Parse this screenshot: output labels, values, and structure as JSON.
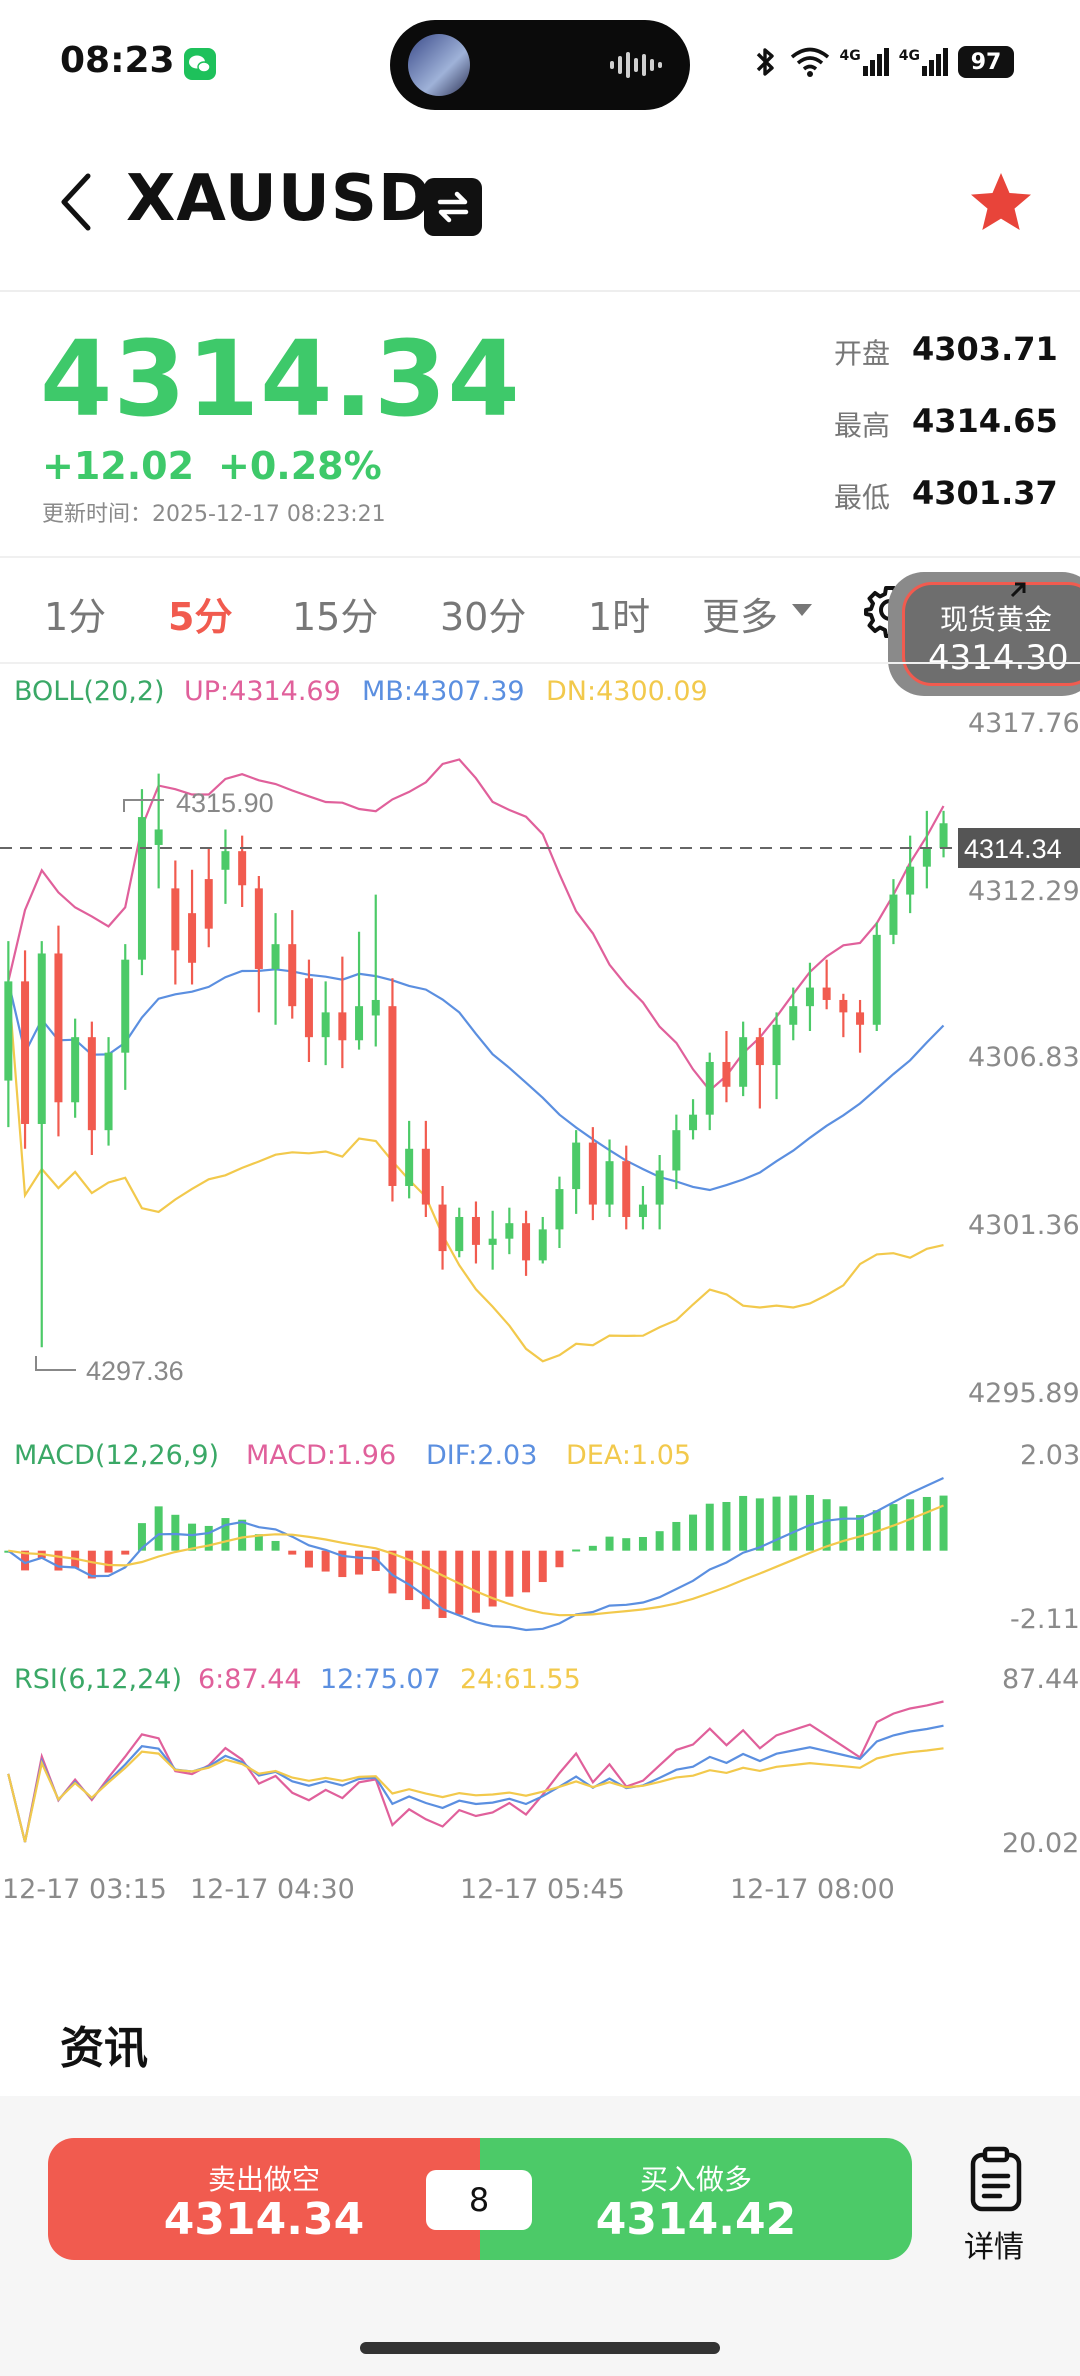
{
  "status_bar": {
    "time": "08:23",
    "network_1": "4G",
    "network_2": "4G",
    "battery": "97"
  },
  "header": {
    "symbol": "XAUUSD"
  },
  "quote": {
    "last": "4314.34",
    "change": "+12.02",
    "change_pct": "+0.28%",
    "update_time": "更新时间：2025-12-17 08:23:21",
    "open_label": "开盘",
    "open": "4303.71",
    "high_label": "最高",
    "high": "4314.65",
    "low_label": "最低",
    "low": "4301.37"
  },
  "tabs": {
    "items": [
      "1分",
      "5分",
      "15分",
      "30分",
      "1时",
      "更多"
    ],
    "selected": "5分"
  },
  "float_badge": {
    "name": "现货黄金",
    "price": "4314.30"
  },
  "boll": {
    "name": "BOLL(20,2)",
    "up": "UP:4314.69",
    "mb": "MB:4307.39",
    "dn": "DN:4300.09"
  },
  "price_axis": [
    "4317.76",
    "4312.29",
    "4306.83",
    "4301.36",
    "4295.89"
  ],
  "current_price_tag": "4314.34",
  "max_label": "4315.90",
  "min_label": "4297.36",
  "macd": {
    "name": "MACD(12,26,9)",
    "macd": "MACD:1.96",
    "dif": "DIF:2.03",
    "dea": "DEA:1.05",
    "axis_top": "2.03",
    "axis_bottom": "-2.11"
  },
  "rsi": {
    "name": "RSI(6,12,24)",
    "r6": "6:87.44",
    "r12": "12:75.07",
    "r24": "24:61.55",
    "axis_top": "87.44",
    "axis_bottom": "20.02"
  },
  "time_axis": [
    "12-17 03:15",
    "12-17 04:30",
    "12-17 05:45",
    "12-17 08:00"
  ],
  "news": {
    "title": "资讯"
  },
  "trade": {
    "sell_label": "卖出做空",
    "sell_price": "4314.34",
    "buy_label": "买入做多",
    "buy_price": "4314.42",
    "spread": "8",
    "detail_label": "详情"
  },
  "colors": {
    "up": "#4cca68",
    "down": "#f15b4f",
    "boll_up": "#e0609b",
    "boll_mb": "#5b8fe0",
    "boll_dn": "#f2c94c"
  },
  "chart_data": {
    "type": "candlestick",
    "symbol": "XAUUSD",
    "interval": "5分",
    "ylim": [
      4295.89,
      4317.76
    ],
    "x_ticks": [
      "12-17 03:15",
      "12-17 04:30",
      "12-17 05:45",
      "12-17 08:00"
    ],
    "candles": [
      [
        4306.0,
        4309.2,
        4310.5,
        4304.5
      ],
      [
        4309.2,
        4304.6,
        4310.2,
        4303.8
      ],
      [
        4304.6,
        4310.1,
        4310.5,
        4297.4
      ],
      [
        4310.1,
        4305.3,
        4311.0,
        4304.2
      ],
      [
        4305.3,
        4307.4,
        4308.0,
        4304.8
      ],
      [
        4307.4,
        4304.4,
        4307.9,
        4303.6
      ],
      [
        4304.4,
        4306.9,
        4307.4,
        4303.9
      ],
      [
        4306.9,
        4309.9,
        4310.4,
        4305.7
      ],
      [
        4309.9,
        4314.5,
        4315.4,
        4309.4
      ],
      [
        4313.6,
        4314.1,
        4315.9,
        4312.2
      ],
      [
        4312.2,
        4310.2,
        4313.1,
        4309.1
      ],
      [
        4311.4,
        4309.8,
        4312.8,
        4309.1
      ],
      [
        4312.5,
        4310.9,
        4313.5,
        4310.3
      ],
      [
        4312.8,
        4313.4,
        4314.1,
        4311.7
      ],
      [
        4313.4,
        4312.3,
        4313.9,
        4311.6
      ],
      [
        4312.2,
        4309.6,
        4312.6,
        4308.2
      ],
      [
        4309.6,
        4310.4,
        4311.4,
        4307.8
      ],
      [
        4310.4,
        4308.4,
        4311.5,
        4308.0
      ],
      [
        4309.3,
        4307.4,
        4309.9,
        4306.6
      ],
      [
        4307.4,
        4308.2,
        4309.2,
        4306.5
      ],
      [
        4308.2,
        4307.3,
        4310.0,
        4306.4
      ],
      [
        4307.3,
        4308.4,
        4310.8,
        4307.0
      ],
      [
        4308.1,
        4308.6,
        4312.0,
        4307.1
      ],
      [
        4308.4,
        4302.6,
        4309.3,
        4302.1
      ],
      [
        4302.6,
        4303.8,
        4304.7,
        4302.2
      ],
      [
        4303.8,
        4302.0,
        4304.7,
        4301.6
      ],
      [
        4302.0,
        4300.5,
        4302.6,
        4299.9
      ],
      [
        4300.5,
        4301.6,
        4301.9,
        4300.3
      ],
      [
        4301.6,
        4300.7,
        4302.1,
        4300.1
      ],
      [
        4300.7,
        4300.9,
        4301.8,
        4299.9
      ],
      [
        4300.9,
        4301.4,
        4301.9,
        4300.4
      ],
      [
        4301.4,
        4300.2,
        4301.8,
        4299.7
      ],
      [
        4300.2,
        4301.2,
        4301.6,
        4300.1
      ],
      [
        4301.2,
        4302.5,
        4302.9,
        4300.6
      ],
      [
        4302.5,
        4304.0,
        4304.4,
        4301.7
      ],
      [
        4304.0,
        4302.0,
        4304.5,
        4301.5
      ],
      [
        4302.0,
        4303.4,
        4304.1,
        4301.6
      ],
      [
        4303.4,
        4301.6,
        4303.9,
        4301.2
      ],
      [
        4301.6,
        4302.0,
        4302.6,
        4301.2
      ],
      [
        4302.0,
        4303.1,
        4303.6,
        4301.2
      ],
      [
        4303.1,
        4304.4,
        4304.9,
        4302.5
      ],
      [
        4304.4,
        4304.9,
        4305.4,
        4304.1
      ],
      [
        4304.9,
        4306.6,
        4306.9,
        4304.4
      ],
      [
        4306.6,
        4305.8,
        4307.6,
        4305.3
      ],
      [
        4305.8,
        4307.4,
        4307.9,
        4305.5
      ],
      [
        4307.4,
        4306.5,
        4307.7,
        4305.1
      ],
      [
        4306.5,
        4307.8,
        4308.2,
        4305.4
      ],
      [
        4307.8,
        4308.4,
        4309.0,
        4307.3
      ],
      [
        4308.4,
        4309.0,
        4309.8,
        4307.6
      ],
      [
        4309.0,
        4308.6,
        4309.9,
        4308.3
      ],
      [
        4308.6,
        4308.2,
        4308.8,
        4307.4
      ],
      [
        4308.2,
        4307.8,
        4308.6,
        4306.9
      ],
      [
        4307.8,
        4310.7,
        4311.1,
        4307.6
      ],
      [
        4310.7,
        4312.0,
        4312.5,
        4310.4
      ],
      [
        4312.0,
        4312.9,
        4313.9,
        4311.4
      ],
      [
        4312.9,
        4313.5,
        4314.7,
        4312.2
      ],
      [
        4313.5,
        4314.3,
        4314.7,
        4313.2
      ]
    ]
  }
}
